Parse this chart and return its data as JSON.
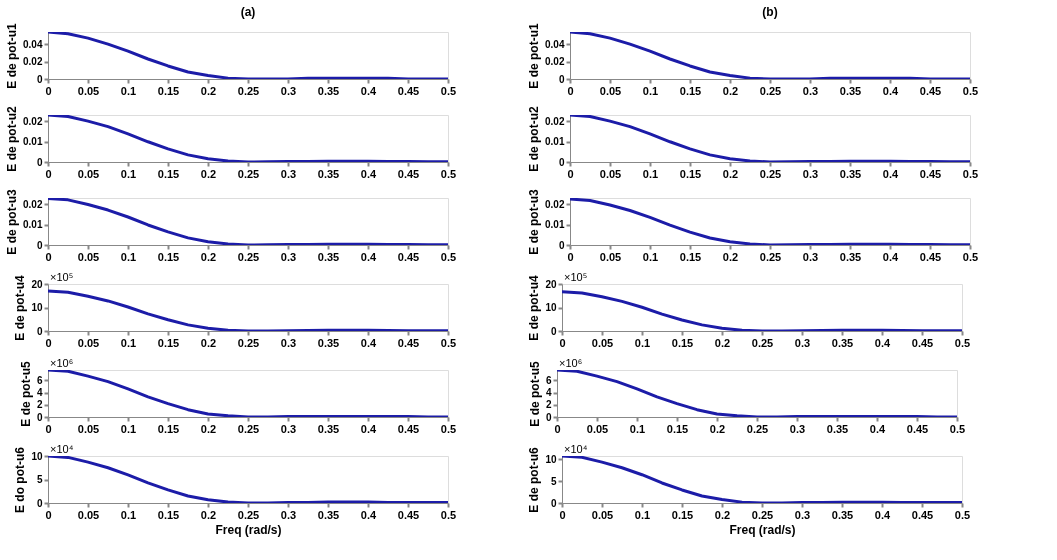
{
  "chart_data": [
    {
      "type": "line",
      "title": "(a)",
      "ylabel": "E de pot-u1",
      "color": "#1c1ca8",
      "xlim": [
        0,
        0.5
      ],
      "xticks": [
        0,
        0.05,
        0.1,
        0.15,
        0.2,
        0.25,
        0.3,
        0.35,
        0.4,
        0.45,
        0.5
      ],
      "ylim": [
        0,
        0.054
      ],
      "yticks": [
        0,
        0.02,
        0.04
      ],
      "x": [
        0,
        0.025,
        0.05,
        0.075,
        0.1,
        0.125,
        0.15,
        0.175,
        0.2,
        0.225,
        0.25,
        0.275,
        0.3,
        0.325,
        0.35,
        0.375,
        0.4,
        0.425,
        0.45,
        0.475,
        0.5
      ],
      "values": [
        0.054,
        0.052,
        0.047,
        0.04,
        0.032,
        0.023,
        0.015,
        0.008,
        0.004,
        0.001,
        0,
        0,
        0,
        0.001,
        0.001,
        0.001,
        0.001,
        0.001,
        0,
        0,
        0
      ]
    },
    {
      "type": "line",
      "title": "(b)",
      "ylabel": "E de pot-u1",
      "color": "#1c1ca8",
      "xlim": [
        0,
        0.5
      ],
      "xticks": [
        0,
        0.05,
        0.1,
        0.15,
        0.2,
        0.25,
        0.3,
        0.35,
        0.4,
        0.45,
        0.5
      ],
      "ylim": [
        0,
        0.054
      ],
      "yticks": [
        0,
        0.02,
        0.04
      ],
      "x": [
        0,
        0.025,
        0.05,
        0.075,
        0.1,
        0.125,
        0.15,
        0.175,
        0.2,
        0.225,
        0.25,
        0.275,
        0.3,
        0.325,
        0.35,
        0.375,
        0.4,
        0.425,
        0.45,
        0.475,
        0.5
      ],
      "values": [
        0.054,
        0.052,
        0.047,
        0.04,
        0.032,
        0.023,
        0.015,
        0.008,
        0.004,
        0.001,
        0,
        0,
        0,
        0.001,
        0.001,
        0.001,
        0.001,
        0.001,
        0,
        0,
        0
      ]
    },
    {
      "type": "line",
      "ylabel": "E de pot-u2",
      "color": "#1c1ca8",
      "xlim": [
        0,
        0.5
      ],
      "xticks": [
        0,
        0.05,
        0.1,
        0.15,
        0.2,
        0.25,
        0.3,
        0.35,
        0.4,
        0.45,
        0.5
      ],
      "ylim": [
        0,
        0.023
      ],
      "yticks": [
        0,
        0.01,
        0.02
      ],
      "x": [
        0,
        0.025,
        0.05,
        0.075,
        0.1,
        0.125,
        0.15,
        0.175,
        0.2,
        0.225,
        0.25,
        0.275,
        0.3,
        0.325,
        0.35,
        0.375,
        0.4,
        0.425,
        0.45,
        0.475,
        0.5
      ],
      "values": [
        0.023,
        0.0223,
        0.02,
        0.0173,
        0.0138,
        0.0099,
        0.0064,
        0.0035,
        0.0016,
        0.0005,
        0,
        0.0001,
        0.0002,
        0.0003,
        0.0004,
        0.0004,
        0.0004,
        0.0003,
        0.0002,
        0.0001,
        0.0001
      ]
    },
    {
      "type": "line",
      "ylabel": "E de pot-u2",
      "color": "#1c1ca8",
      "xlim": [
        0,
        0.5
      ],
      "xticks": [
        0,
        0.05,
        0.1,
        0.15,
        0.2,
        0.25,
        0.3,
        0.35,
        0.4,
        0.45,
        0.5
      ],
      "ylim": [
        0,
        0.023
      ],
      "yticks": [
        0,
        0.01,
        0.02
      ],
      "x": [
        0,
        0.025,
        0.05,
        0.075,
        0.1,
        0.125,
        0.15,
        0.175,
        0.2,
        0.225,
        0.25,
        0.275,
        0.3,
        0.325,
        0.35,
        0.375,
        0.4,
        0.425,
        0.45,
        0.475,
        0.5
      ],
      "values": [
        0.023,
        0.0223,
        0.02,
        0.0173,
        0.0138,
        0.0099,
        0.0064,
        0.0035,
        0.0016,
        0.0005,
        0,
        0.0001,
        0.0002,
        0.0003,
        0.0004,
        0.0004,
        0.0004,
        0.0003,
        0.0002,
        0.0001,
        0.0001
      ]
    },
    {
      "type": "line",
      "ylabel": "E de pot-u3",
      "color": "#1c1ca8",
      "xlim": [
        0,
        0.5
      ],
      "xticks": [
        0,
        0.05,
        0.1,
        0.15,
        0.2,
        0.25,
        0.3,
        0.35,
        0.4,
        0.45,
        0.5
      ],
      "ylim": [
        0,
        0.023
      ],
      "yticks": [
        0,
        0.01,
        0.02
      ],
      "x": [
        0,
        0.025,
        0.05,
        0.075,
        0.1,
        0.125,
        0.15,
        0.175,
        0.2,
        0.225,
        0.25,
        0.275,
        0.3,
        0.325,
        0.35,
        0.375,
        0.4,
        0.425,
        0.45,
        0.475,
        0.5
      ],
      "values": [
        0.0228,
        0.0221,
        0.0198,
        0.0171,
        0.0137,
        0.0098,
        0.0064,
        0.0035,
        0.0016,
        0.0005,
        0,
        0.0001,
        0.0002,
        0.0003,
        0.0004,
        0.0004,
        0.0004,
        0.0003,
        0.0002,
        0.0001,
        0.0001
      ]
    },
    {
      "type": "line",
      "ylabel": "E de pot-u3",
      "color": "#1c1ca8",
      "xlim": [
        0,
        0.5
      ],
      "xticks": [
        0,
        0.05,
        0.1,
        0.15,
        0.2,
        0.25,
        0.3,
        0.35,
        0.4,
        0.45,
        0.5
      ],
      "ylim": [
        0,
        0.023
      ],
      "yticks": [
        0,
        0.01,
        0.02
      ],
      "x": [
        0,
        0.025,
        0.05,
        0.075,
        0.1,
        0.125,
        0.15,
        0.175,
        0.2,
        0.225,
        0.25,
        0.275,
        0.3,
        0.325,
        0.35,
        0.375,
        0.4,
        0.425,
        0.45,
        0.475,
        0.5
      ],
      "values": [
        0.0225,
        0.0218,
        0.0196,
        0.0169,
        0.0135,
        0.0097,
        0.0063,
        0.0034,
        0.0016,
        0.0005,
        0,
        0.0001,
        0.0002,
        0.0003,
        0.0004,
        0.0004,
        0.0004,
        0.0003,
        0.0002,
        0.0001,
        0.0001
      ]
    },
    {
      "type": "line",
      "ylabel": "E de pot-u4",
      "annotations": [
        "×10⁵"
      ],
      "color": "#1c1ca8",
      "xlim": [
        0,
        0.5
      ],
      "xticks": [
        0,
        0.05,
        0.1,
        0.15,
        0.2,
        0.25,
        0.3,
        0.35,
        0.4,
        0.45,
        0.5
      ],
      "ylim": [
        0,
        20
      ],
      "yticks": [
        0,
        10,
        20
      ],
      "x": [
        0,
        0.025,
        0.05,
        0.075,
        0.1,
        0.125,
        0.15,
        0.175,
        0.2,
        0.225,
        0.25,
        0.275,
        0.3,
        0.325,
        0.35,
        0.375,
        0.4,
        0.425,
        0.45,
        0.475,
        0.5
      ],
      "values": [
        17,
        16.5,
        14.8,
        12.8,
        10.2,
        7.3,
        4.8,
        2.6,
        1.2,
        0.3,
        0,
        0,
        0.1,
        0.2,
        0.3,
        0.3,
        0.3,
        0.2,
        0.1,
        0.1,
        0.1
      ]
    },
    {
      "type": "line",
      "ylabel": "E de pot-u4",
      "annotations": [
        "×10⁵"
      ],
      "color": "#1c1ca8",
      "xlim": [
        0,
        0.5
      ],
      "xticks": [
        0,
        0.05,
        0.1,
        0.15,
        0.2,
        0.25,
        0.3,
        0.35,
        0.4,
        0.45,
        0.5
      ],
      "ylim": [
        0,
        20
      ],
      "yticks": [
        0,
        10,
        20
      ],
      "x": [
        0,
        0.025,
        0.05,
        0.075,
        0.1,
        0.125,
        0.15,
        0.175,
        0.2,
        0.225,
        0.25,
        0.275,
        0.3,
        0.325,
        0.35,
        0.375,
        0.4,
        0.425,
        0.45,
        0.475,
        0.5
      ],
      "values": [
        16.7,
        16.2,
        14.6,
        12.6,
        10.1,
        7.2,
        4.7,
        2.6,
        1.2,
        0.3,
        0,
        0,
        0.1,
        0.2,
        0.3,
        0.3,
        0.3,
        0.2,
        0.1,
        0.1,
        0.1
      ]
    },
    {
      "type": "line",
      "ylabel": "E de pot-u5",
      "annotations": [
        "×10⁶"
      ],
      "color": "#1c1ca8",
      "xlim": [
        0,
        0.5
      ],
      "xticks": [
        0,
        0.05,
        0.1,
        0.15,
        0.2,
        0.25,
        0.3,
        0.35,
        0.4,
        0.45,
        0.5
      ],
      "ylim": [
        0,
        7.7
      ],
      "yticks": [
        0,
        2,
        4,
        6
      ],
      "x": [
        0,
        0.025,
        0.05,
        0.075,
        0.1,
        0.125,
        0.15,
        0.175,
        0.2,
        0.225,
        0.25,
        0.275,
        0.3,
        0.325,
        0.35,
        0.375,
        0.4,
        0.425,
        0.45,
        0.475,
        0.5
      ],
      "values": [
        7.7,
        7.5,
        6.7,
        5.8,
        4.6,
        3.3,
        2.2,
        1.2,
        0.5,
        0.2,
        0,
        0,
        0.1,
        0.1,
        0.1,
        0.1,
        0.1,
        0.1,
        0.1,
        0,
        0
      ]
    },
    {
      "type": "line",
      "ylabel": "E de pot-u5",
      "annotations": [
        "×10⁶"
      ],
      "color": "#1c1ca8",
      "xlim": [
        0,
        0.5
      ],
      "xticks": [
        0,
        0.05,
        0.1,
        0.15,
        0.2,
        0.25,
        0.3,
        0.35,
        0.4,
        0.45,
        0.5
      ],
      "ylim": [
        0,
        7.7
      ],
      "yticks": [
        0,
        2,
        4,
        6
      ],
      "x": [
        0,
        0.025,
        0.05,
        0.075,
        0.1,
        0.125,
        0.15,
        0.175,
        0.2,
        0.225,
        0.25,
        0.275,
        0.3,
        0.325,
        0.35,
        0.375,
        0.4,
        0.425,
        0.45,
        0.475,
        0.5
      ],
      "values": [
        7.7,
        7.5,
        6.7,
        5.8,
        4.6,
        3.3,
        2.2,
        1.2,
        0.5,
        0.2,
        0,
        0,
        0.1,
        0.1,
        0.1,
        0.1,
        0.1,
        0.1,
        0.1,
        0,
        0
      ]
    },
    {
      "type": "line",
      "xlabel": "Freq (rad/s)",
      "ylabel": "E do pot-u6",
      "annotations": [
        "×10⁴"
      ],
      "color": "#1c1ca8",
      "xlim": [
        0,
        0.5
      ],
      "xticks": [
        0,
        0.05,
        0.1,
        0.15,
        0.2,
        0.25,
        0.3,
        0.35,
        0.4,
        0.45,
        0.5
      ],
      "ylim": [
        0,
        10
      ],
      "yticks": [
        0,
        5,
        10
      ],
      "x": [
        0,
        0.025,
        0.05,
        0.075,
        0.1,
        0.125,
        0.15,
        0.175,
        0.2,
        0.225,
        0.25,
        0.275,
        0.3,
        0.325,
        0.35,
        0.375,
        0.4,
        0.425,
        0.45,
        0.475,
        0.5
      ],
      "values": [
        10,
        9.7,
        8.7,
        7.5,
        6,
        4.3,
        2.8,
        1.5,
        0.7,
        0.2,
        0,
        0,
        0.1,
        0.1,
        0.2,
        0.2,
        0.2,
        0.1,
        0.1,
        0.1,
        0.1
      ]
    },
    {
      "type": "line",
      "xlabel": "Freq (rad/s)",
      "ylabel": "E de pot-u6",
      "annotations": [
        "×10⁴"
      ],
      "color": "#1c1ca8",
      "xlim": [
        0,
        0.5
      ],
      "xticks": [
        0,
        0.05,
        0.1,
        0.15,
        0.2,
        0.25,
        0.3,
        0.35,
        0.4,
        0.45,
        0.5
      ],
      "ylim": [
        0,
        10.8
      ],
      "yticks": [
        0,
        5,
        10
      ],
      "x": [
        0,
        0.025,
        0.05,
        0.075,
        0.1,
        0.125,
        0.15,
        0.175,
        0.2,
        0.225,
        0.25,
        0.275,
        0.3,
        0.325,
        0.35,
        0.375,
        0.4,
        0.425,
        0.45,
        0.475,
        0.5
      ],
      "values": [
        10.8,
        10.5,
        9.4,
        8.1,
        6.5,
        4.6,
        3,
        1.6,
        0.8,
        0.2,
        0,
        0,
        0.1,
        0.1,
        0.2,
        0.2,
        0.2,
        0.1,
        0.1,
        0.1,
        0.1
      ]
    }
  ]
}
